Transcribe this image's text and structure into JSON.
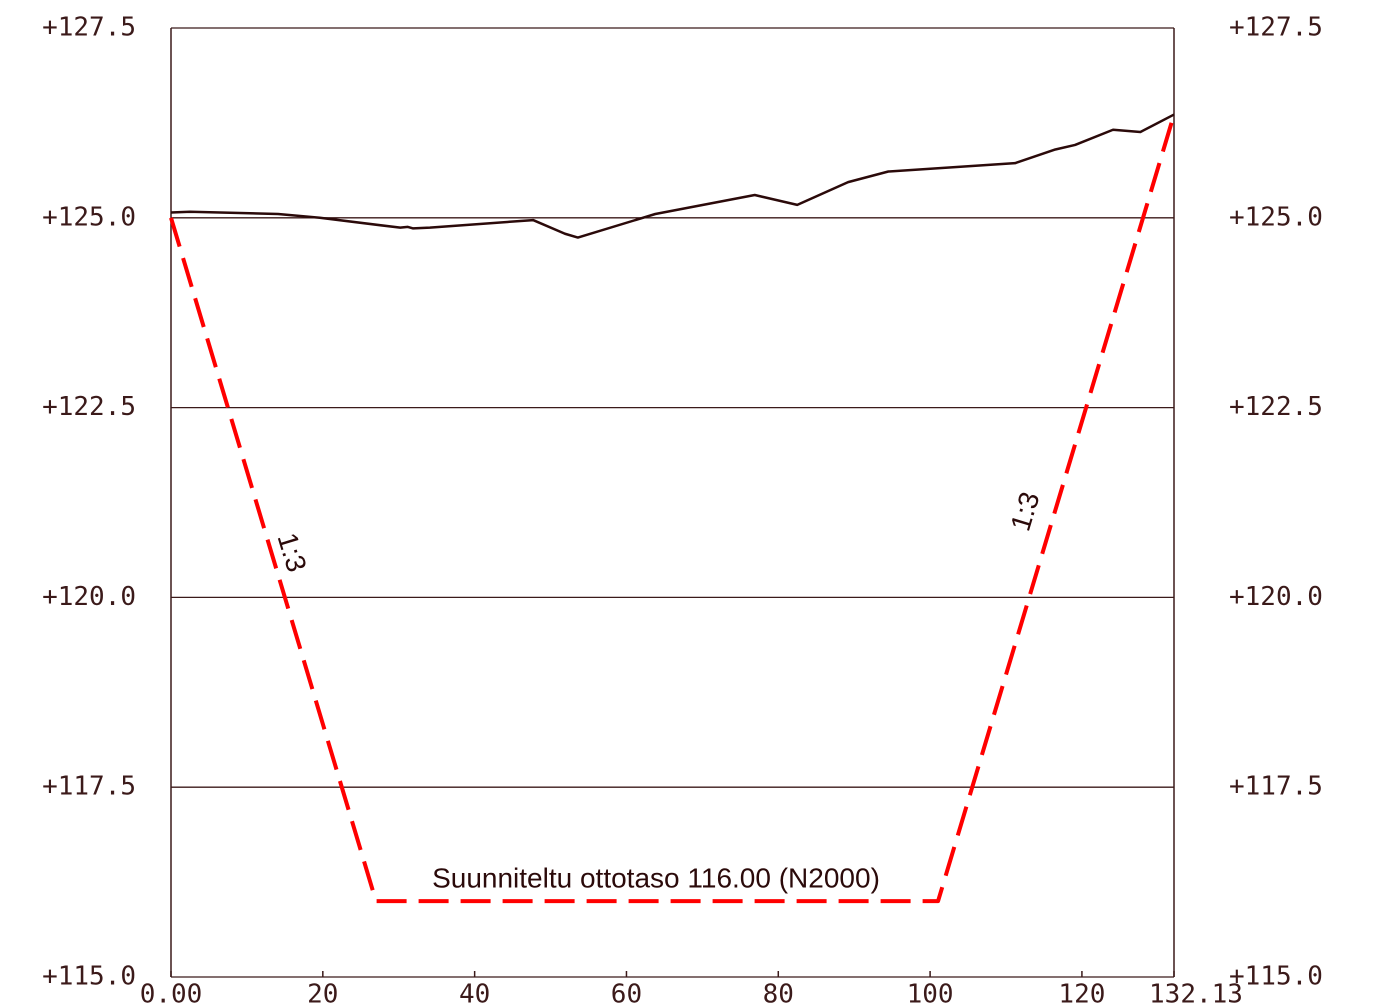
{
  "chart_data": {
    "type": "line",
    "xlim": [
      0,
      132.13
    ],
    "xticks": [
      {
        "value": 0,
        "label": "0.00"
      },
      20,
      40,
      60,
      80,
      100,
      120,
      132.13
    ],
    "ylim": [
      115.0,
      127.5
    ],
    "yticks": [
      {
        "value": 115.0,
        "label": "+115.0"
      },
      {
        "value": 117.5,
        "label": "+117.5"
      },
      {
        "value": 120.0,
        "label": "+120.0"
      },
      {
        "value": 122.5,
        "label": "+122.5"
      },
      {
        "value": 125.0,
        "label": "+125.0"
      },
      {
        "value": 127.5,
        "label": "+127.5"
      }
    ],
    "grid": true,
    "series": [
      {
        "color": "#2b0a0a",
        "dashed": false,
        "x": [
          0,
          2.5,
          14.1,
          19.6,
          30.2,
          31.2,
          31.9,
          34.1,
          47.7,
          51.9,
          53.6,
          63.8,
          76.9,
          82.5,
          89.2,
          94.5,
          111.2,
          116.5,
          119.1,
          124.1,
          127.7,
          132.13
        ],
        "values": [
          125.07,
          125.08,
          125.05,
          125.0,
          124.87,
          124.88,
          124.86,
          124.87,
          124.97,
          124.79,
          124.74,
          125.05,
          125.3,
          125.17,
          125.47,
          125.61,
          125.72,
          125.9,
          125.96,
          126.16,
          126.13,
          126.36
        ]
      },
      {
        "color": "#ff0000",
        "dashed": true,
        "x": [
          0,
          27.0,
          101.05,
          132.13
        ],
        "values": [
          125.0,
          116.0,
          116.0,
          126.36
        ]
      }
    ],
    "annotations": [
      "1:3",
      "1:3",
      "Suunniteltu ottotaso 116.00 (N2000)"
    ]
  }
}
